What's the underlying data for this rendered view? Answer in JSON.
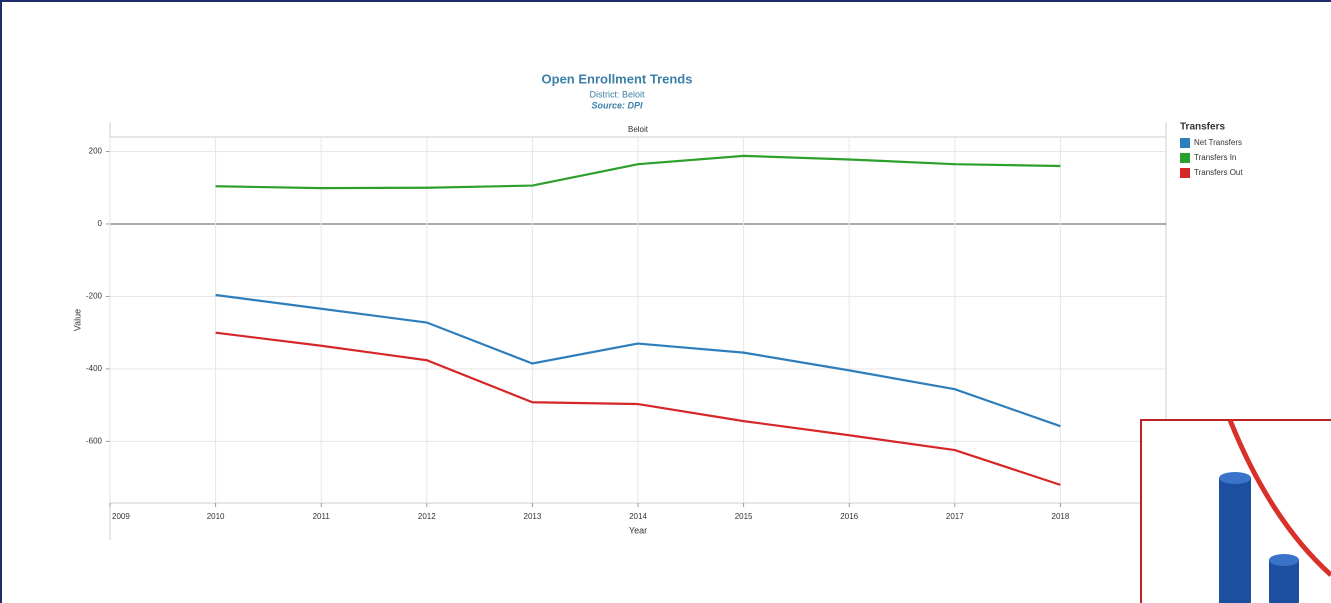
{
  "chart_data": {
    "type": "line",
    "title": "Open Enrollment Trends",
    "subtitle": "District: Beloit",
    "source": "Source: DPI",
    "panel_label": "Beloit",
    "x_label": "Year",
    "y_label": "Value",
    "legend_title": "Transfers",
    "x": [
      2010,
      2011,
      2012,
      2013,
      2014,
      2015,
      2016,
      2017,
      2018
    ],
    "series": [
      {
        "name": "Net Transfers",
        "color": "#2e7ebc",
        "values": [
          -196,
          -234,
          -272,
          -385,
          -330,
          -355,
          -404,
          -456,
          -558
        ]
      },
      {
        "name": "Transfers In",
        "color": "#2ca02c",
        "values": [
          104,
          99,
          100,
          106,
          165,
          188,
          178,
          165,
          160
        ]
      },
      {
        "name": "Transfers Out",
        "color": "#d62728",
        "values": [
          -300,
          -336,
          -376,
          -492,
          -497,
          -544,
          -583,
          -624,
          -720
        ]
      }
    ],
    "xlim": [
      2009,
      2019
    ],
    "xticks": [
      2009,
      2010,
      2011,
      2012,
      2013,
      2014,
      2015,
      2016,
      2017,
      2018
    ],
    "ylim": [
      -770,
      240
    ],
    "yticks": [
      -600,
      -400,
      -200,
      0,
      200
    ],
    "grid": true
  }
}
